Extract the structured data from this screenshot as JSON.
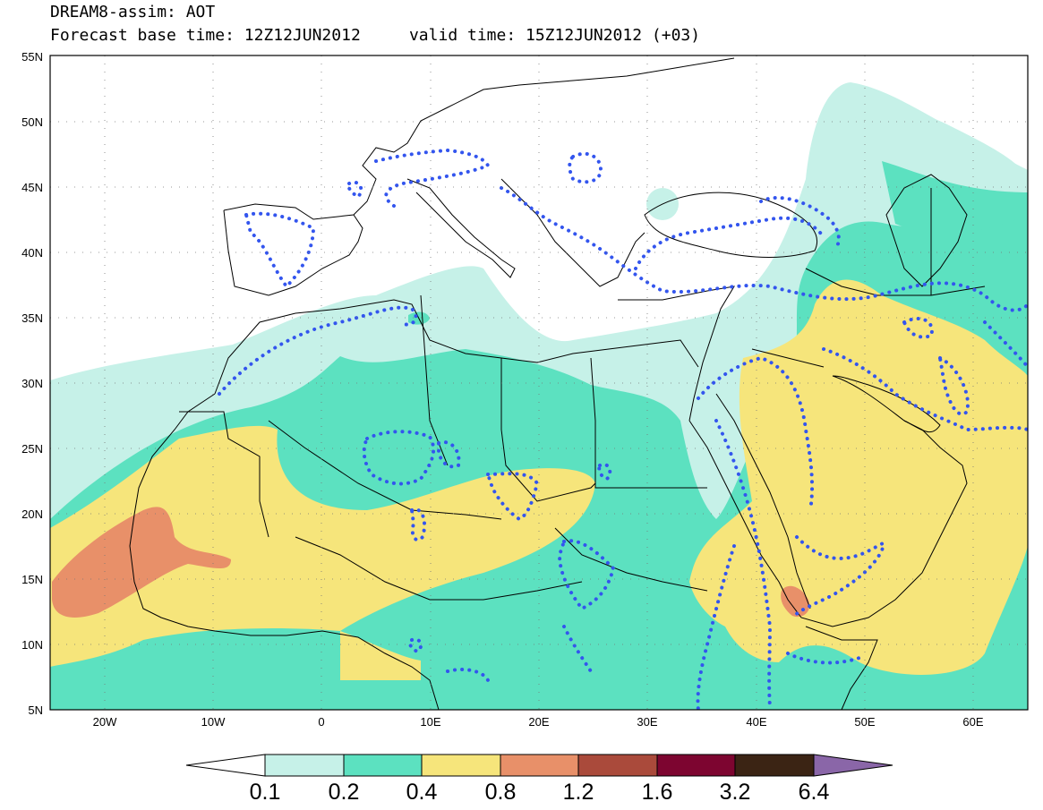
{
  "header": {
    "title": "DREAM8-assim: AOT",
    "subtitle": "Forecast base time: 12Z12JUN2012     valid time: 15Z12JUN2012 (+03)"
  },
  "map": {
    "projection": "lat-lon",
    "lon_range": [
      -25,
      65
    ],
    "lat_range": [
      5,
      55
    ],
    "lat_ticks": [
      "5N",
      "10N",
      "15N",
      "20N",
      "25N",
      "30N",
      "35N",
      "40N",
      "45N",
      "50N",
      "55N"
    ],
    "lon_ticks": [
      "20W",
      "10W",
      "0",
      "10E",
      "20E",
      "30E",
      "40E",
      "50E",
      "60E"
    ],
    "grid": "dotted",
    "dotted_contour_color": "#3355ee"
  },
  "colorbar": {
    "levels": [
      "0.1",
      "0.2",
      "0.4",
      "0.8",
      "1.2",
      "1.6",
      "3.2",
      "6.4"
    ],
    "colors": [
      "#ffffff",
      "#c6f1e8",
      "#5ce1c0",
      "#f6e57b",
      "#e89069",
      "#aa4a3b",
      "#7d0530",
      "#3b2414",
      "#8a66a8"
    ]
  }
}
